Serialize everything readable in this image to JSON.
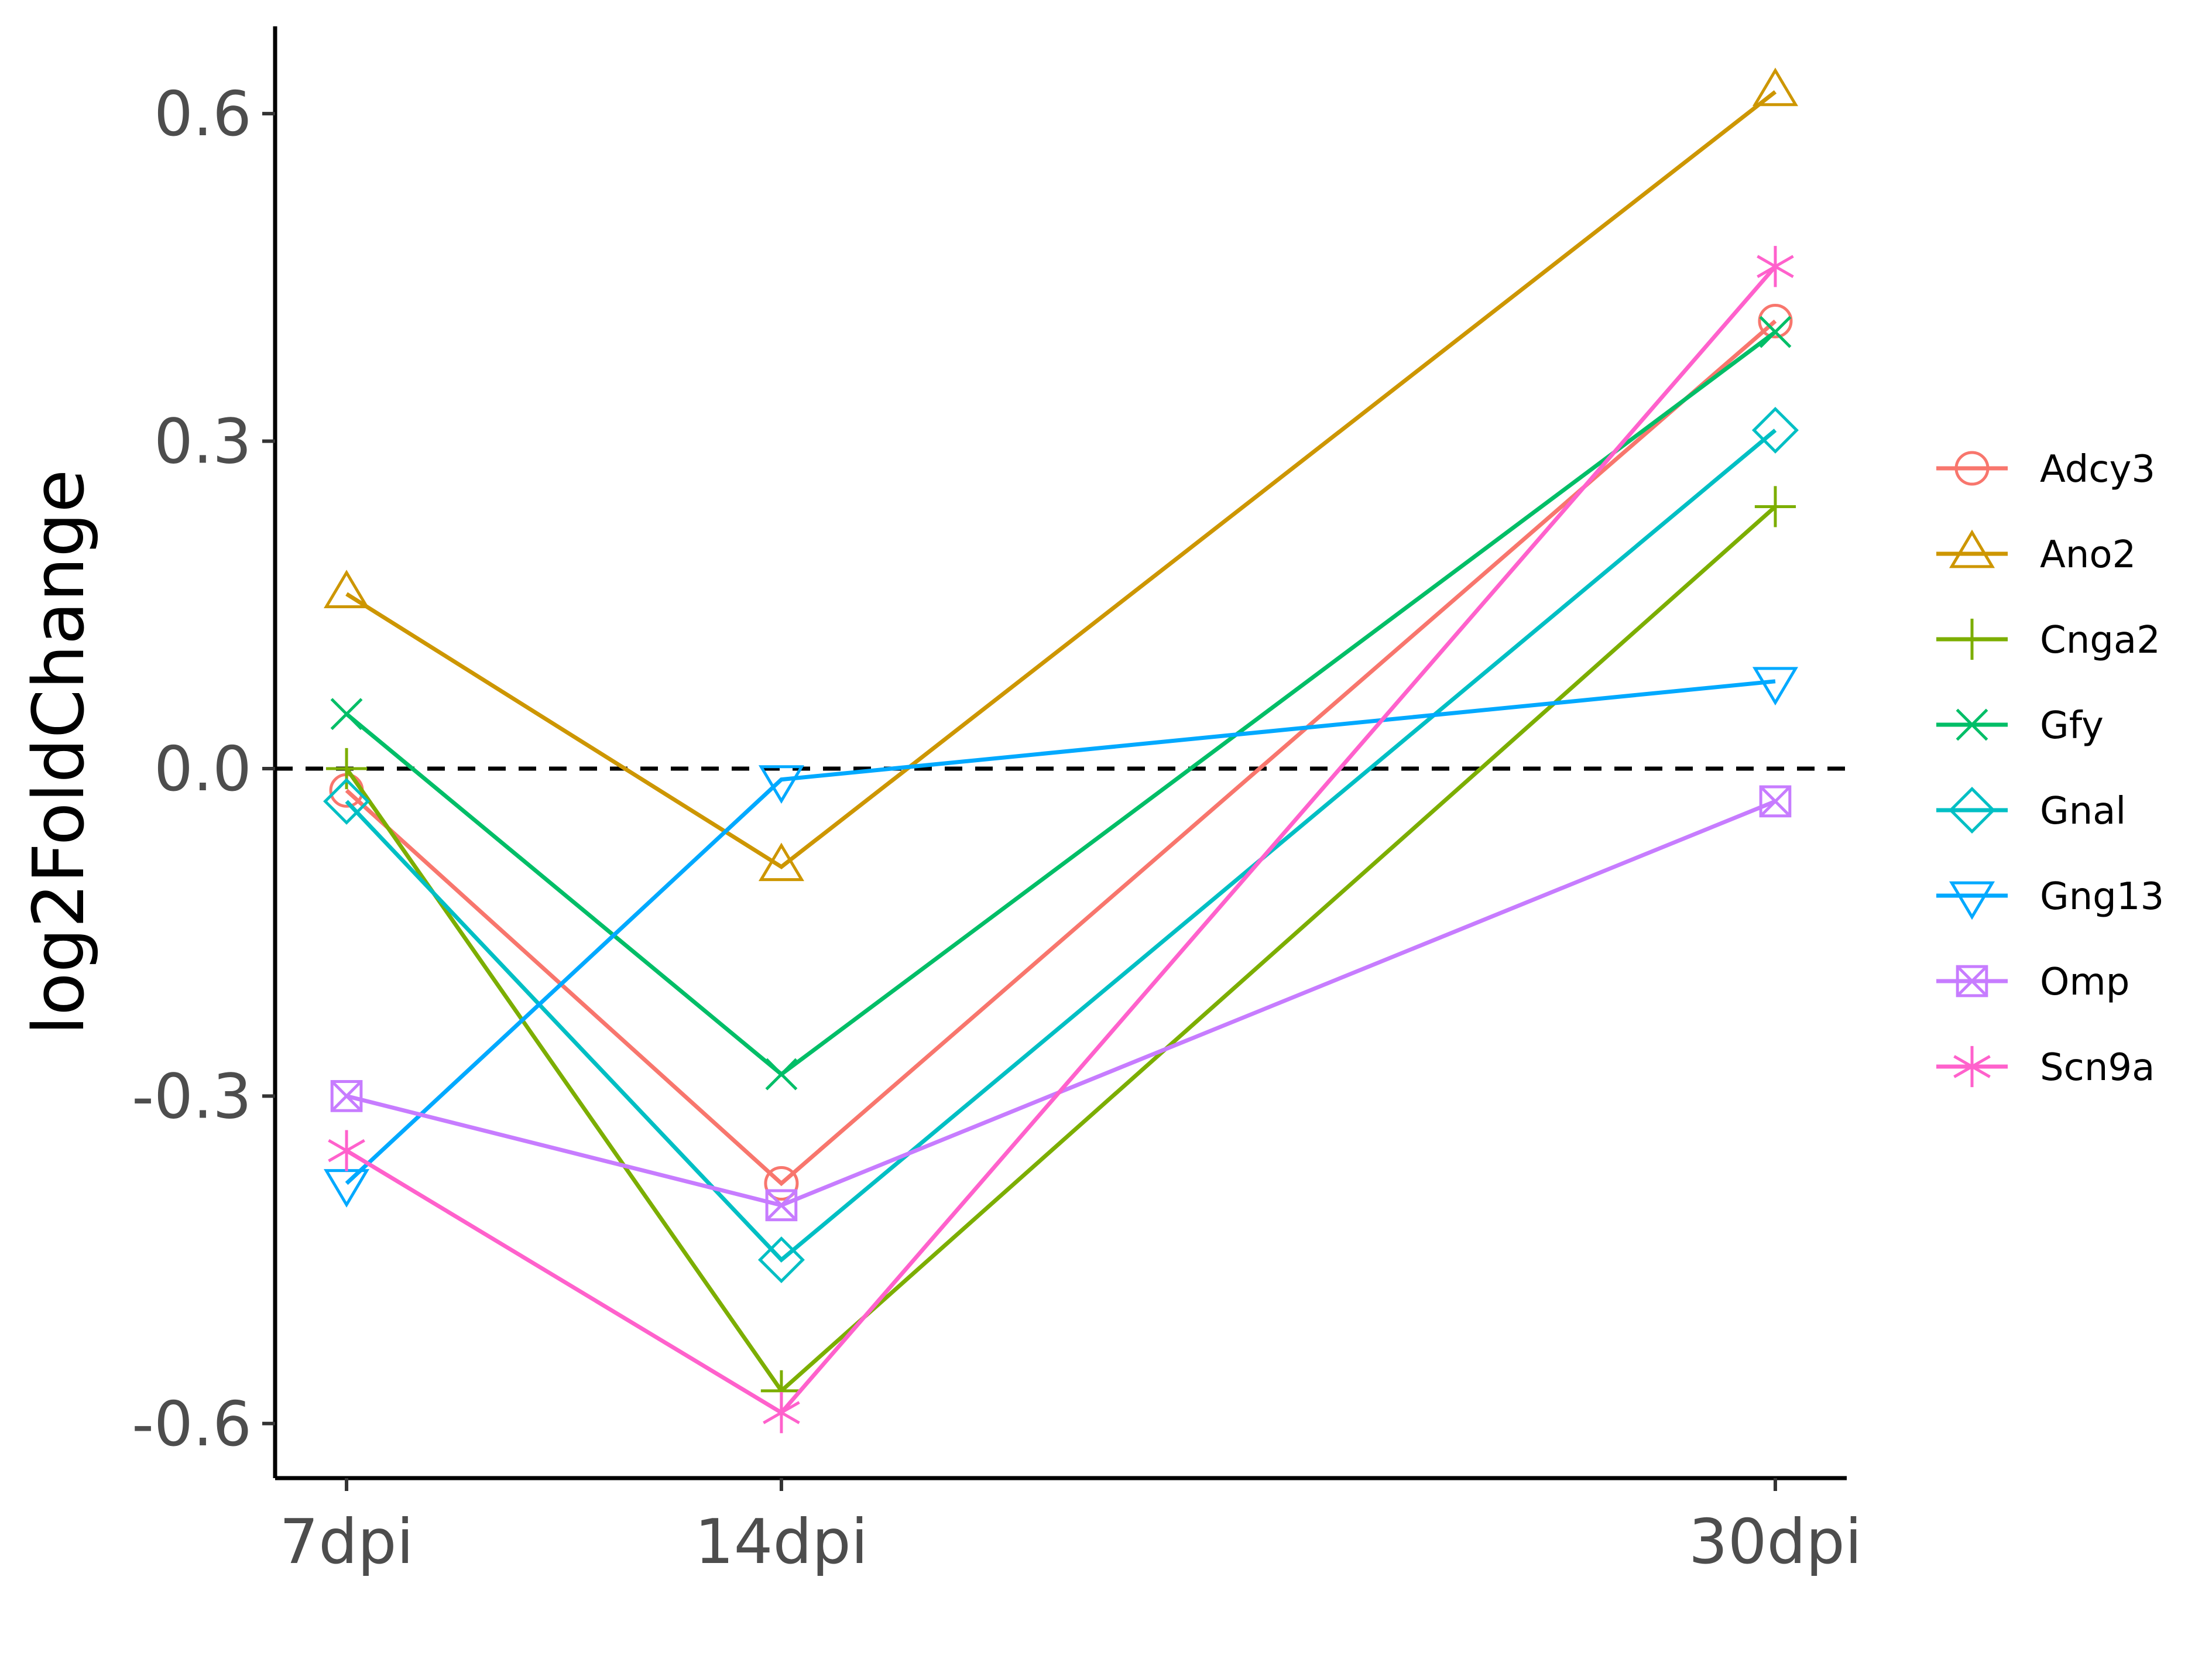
{
  "chart_data": {
    "type": "line",
    "x": [
      "7dpi",
      "14dpi",
      "30dpi"
    ],
    "x_positions": [
      7,
      14,
      30
    ],
    "xlim": [
      5.85,
      31.15
    ],
    "ylabel": "log2FoldChange",
    "ylim": [
      -0.65,
      0.68
    ],
    "yticks": [
      0.6,
      0.3,
      0.0,
      -0.3,
      -0.6
    ],
    "ytick_labels": [
      "0.6",
      "0.3",
      "0.0",
      "-0.3",
      "-0.6"
    ],
    "reference_line": {
      "y": 0.0,
      "style": "dashed"
    },
    "grid": false,
    "legend_position": "right",
    "series": [
      {
        "name": "Adcy3",
        "color": "#F8766D",
        "shape": "circle",
        "values": [
          -0.02,
          -0.38,
          0.41
        ]
      },
      {
        "name": "Ano2",
        "color": "#CD9600",
        "shape": "triangle",
        "values": [
          0.16,
          -0.09,
          0.62
        ]
      },
      {
        "name": "Cnga2",
        "color": "#7CAE00",
        "shape": "plus",
        "values": [
          0.0,
          -0.57,
          0.24
        ]
      },
      {
        "name": "Gfy",
        "color": "#00BE67",
        "shape": "cross",
        "values": [
          0.05,
          -0.28,
          0.4
        ]
      },
      {
        "name": "Gnal",
        "color": "#00BFC4",
        "shape": "diamond",
        "values": [
          -0.03,
          -0.45,
          0.31
        ]
      },
      {
        "name": "Gng13",
        "color": "#00A9FF",
        "shape": "triangle-down",
        "values": [
          -0.38,
          -0.01,
          0.08
        ]
      },
      {
        "name": "Omp",
        "color": "#C77CFF",
        "shape": "square-x",
        "values": [
          -0.3,
          -0.4,
          -0.03
        ]
      },
      {
        "name": "Scn9a",
        "color": "#FF61CC",
        "shape": "asterisk",
        "values": [
          -0.35,
          -0.59,
          0.46
        ]
      }
    ]
  }
}
